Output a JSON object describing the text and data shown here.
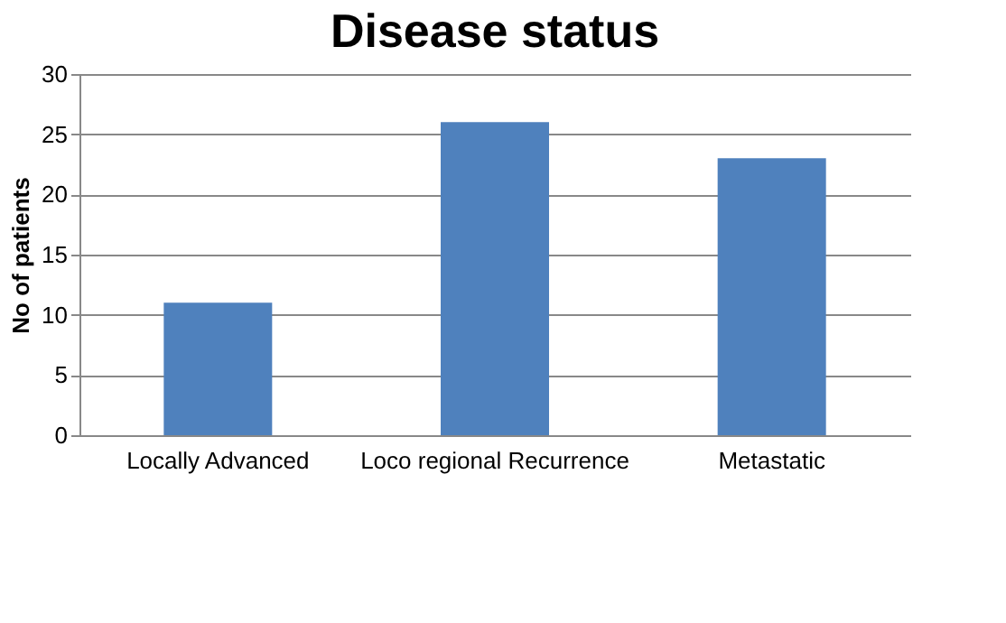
{
  "chart_data": {
    "type": "bar",
    "title": "Disease status",
    "ylabel": "No of patients",
    "categories": [
      "Locally Advanced",
      "Loco regional Recurrence",
      "Metastatic"
    ],
    "values": [
      11,
      26,
      23
    ],
    "color": "#4f81bd",
    "ylim": [
      0,
      30
    ],
    "yticks": [
      0,
      5,
      10,
      15,
      20,
      25,
      30
    ],
    "grid": "y"
  }
}
